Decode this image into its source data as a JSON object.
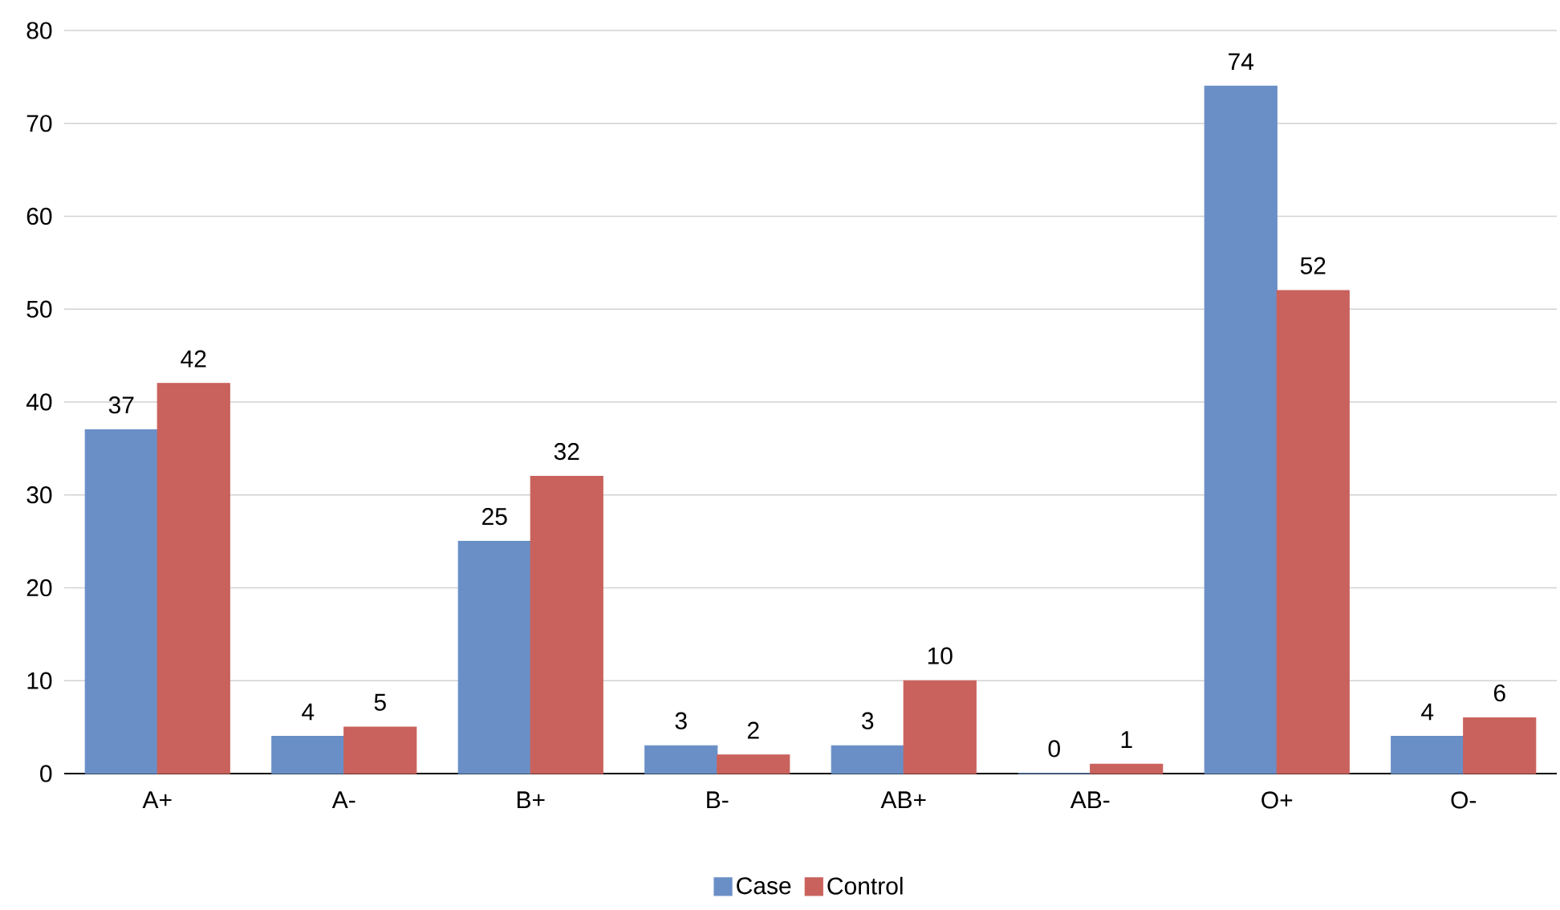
{
  "chart_data": {
    "type": "bar",
    "categories": [
      "A+",
      "A-",
      "B+",
      "B-",
      "AB+",
      "AB-",
      "O+",
      "O-"
    ],
    "series": [
      {
        "name": "Case",
        "color": "#6a8fc7",
        "values": [
          37,
          4,
          25,
          3,
          3,
          0,
          74,
          4
        ]
      },
      {
        "name": "Control",
        "color": "#c9625c",
        "values": [
          42,
          5,
          32,
          2,
          10,
          1,
          52,
          6
        ]
      }
    ],
    "ylim": [
      0,
      80
    ],
    "yticks": [
      0,
      10,
      20,
      30,
      40,
      50,
      60,
      70,
      80
    ],
    "grid": "y",
    "legend": "bottom",
    "data_labels": true
  }
}
